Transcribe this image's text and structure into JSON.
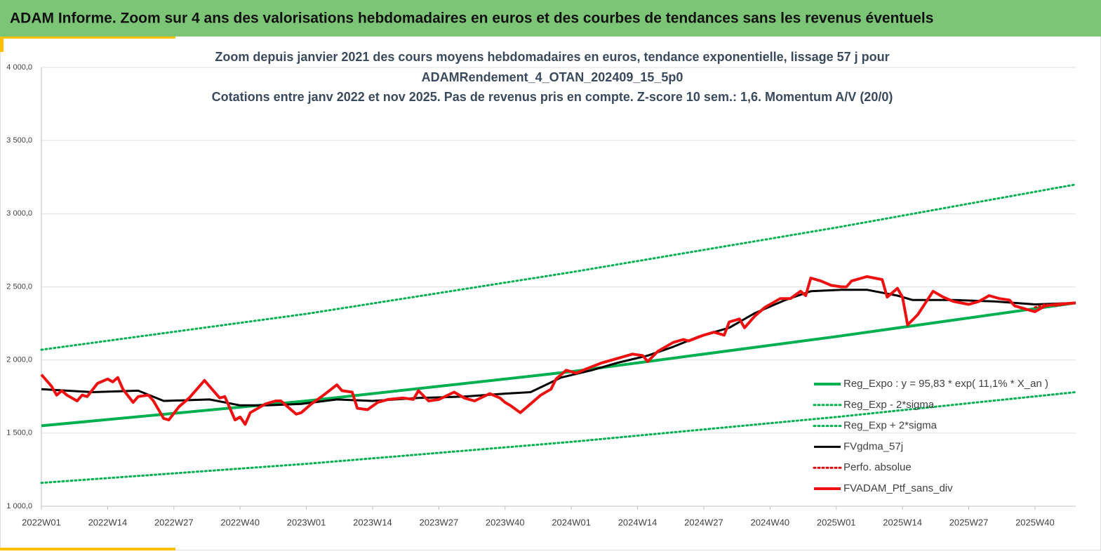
{
  "header": {
    "title": "ADAM Informe. Zoom sur 4 ans des valorisations hebdomadaires en euros et des courbes de tendances sans les revenus éventuels"
  },
  "chart_data": {
    "type": "line",
    "title": [
      "Zoom depuis janvier 2021 des cours moyens hebdomadaires  en euros, tendance exponentielle, lissage 57 j pour",
      "ADAMRendement_4_OTAN_202409_15_5p0",
      "Cotations  entre janv 2022 et nov 2025. Pas de revenus pris en compte. Z-score 10 sem.: 1,6. Momentum  A/V (20/0)"
    ],
    "xlim": [
      0,
      203
    ],
    "xticks": [
      {
        "value": 0,
        "label": "2022W01"
      },
      {
        "value": 13,
        "label": "2022W14"
      },
      {
        "value": 26,
        "label": "2022W27"
      },
      {
        "value": 39,
        "label": "2022W40"
      },
      {
        "value": 52,
        "label": "2023W01"
      },
      {
        "value": 65,
        "label": "2023W14"
      },
      {
        "value": 78,
        "label": "2023W27"
      },
      {
        "value": 91,
        "label": "2023W40"
      },
      {
        "value": 104,
        "label": "2024W01"
      },
      {
        "value": 117,
        "label": "2024W14"
      },
      {
        "value": 130,
        "label": "2024W27"
      },
      {
        "value": 143,
        "label": "2024W40"
      },
      {
        "value": 156,
        "label": "2025W01"
      },
      {
        "value": 169,
        "label": "2025W14"
      },
      {
        "value": 182,
        "label": "2025W27"
      },
      {
        "value": 195,
        "label": "2025W40"
      }
    ],
    "ylim": [
      1000,
      4000
    ],
    "yticks": [
      {
        "value": 1000,
        "label": "1 000,0"
      },
      {
        "value": 1500,
        "label": "1 500,0"
      },
      {
        "value": 2000,
        "label": "2 000,0"
      },
      {
        "value": 2500,
        "label": "2 500,0"
      },
      {
        "value": 3000,
        "label": "3 000,0"
      },
      {
        "value": 3500,
        "label": "3 500,0"
      },
      {
        "value": 4000,
        "label": "4 000,0"
      }
    ],
    "grid": true,
    "legend": "lower right",
    "series": [
      {
        "name": "Reg_Expo : y = 95,83 * exp( 11,1% *  X_an )",
        "color": "#00b050",
        "style": "solid",
        "width": 4,
        "x": [
          0,
          52,
          104,
          156,
          203
        ],
        "values": [
          1550,
          1720,
          1920,
          2160,
          2390
        ]
      },
      {
        "name": "Reg_Exp - 2*sigma",
        "color": "#00b050",
        "style": "dotted",
        "width": 3,
        "x": [
          0,
          52,
          104,
          156,
          203
        ],
        "values": [
          1160,
          1290,
          1440,
          1610,
          1780
        ]
      },
      {
        "name": "Reg_Exp + 2*sigma",
        "color": "#00b050",
        "style": "dotted",
        "width": 3,
        "x": [
          0,
          52,
          104,
          156,
          203
        ],
        "values": [
          2070,
          2315,
          2600,
          2905,
          3200
        ]
      },
      {
        "name": "FVgdma_57j",
        "color": "#000000",
        "style": "solid",
        "width": 3,
        "x": [
          0,
          10,
          19,
          24,
          33,
          39,
          44,
          51,
          58,
          65,
          74,
          83,
          91,
          96,
          102,
          108,
          113,
          119,
          124,
          129,
          135,
          140,
          146,
          151,
          157,
          162,
          168,
          171,
          179,
          187,
          195,
          203
        ],
        "values": [
          1800,
          1780,
          1790,
          1720,
          1730,
          1690,
          1690,
          1700,
          1730,
          1720,
          1740,
          1750,
          1770,
          1780,
          1880,
          1930,
          1980,
          2030,
          2090,
          2160,
          2220,
          2320,
          2410,
          2470,
          2480,
          2480,
          2440,
          2410,
          2410,
          2400,
          2380,
          2390
        ]
      },
      {
        "name": "Perfo. absolue",
        "color": "#e00000",
        "style": "dotted",
        "width": 3,
        "x": [
          195,
          197,
          199,
          201,
          203
        ],
        "values": [
          2360,
          2380,
          2370,
          2380,
          2390
        ]
      },
      {
        "name": "FVADAM_Ptf_sans_div",
        "color": "#ee1111",
        "style": "solid",
        "width": 4,
        "x": [
          0,
          2,
          3,
          4,
          5,
          7,
          8,
          9,
          11,
          13,
          14,
          15,
          16,
          18,
          19,
          21,
          22,
          24,
          25,
          27,
          29,
          32,
          33,
          35,
          36,
          38,
          39,
          40,
          41,
          44,
          46,
          47,
          48,
          50,
          51,
          53,
          55,
          58,
          59,
          61,
          62,
          64,
          66,
          68,
          71,
          73,
          74,
          76,
          78,
          81,
          83,
          85,
          88,
          90,
          91,
          92,
          94,
          96,
          98,
          100,
          101,
          103,
          105,
          107,
          110,
          113,
          116,
          118,
          119,
          121,
          124,
          126,
          127,
          130,
          132,
          134,
          135,
          137,
          138,
          140,
          142,
          145,
          147,
          149,
          150,
          151,
          153,
          155,
          157,
          158,
          159,
          162,
          165,
          166,
          168,
          169,
          170,
          172,
          175,
          177,
          179,
          182,
          184,
          186,
          188,
          190,
          191,
          193,
          195,
          197,
          199,
          203
        ],
        "values": [
          1900,
          1820,
          1760,
          1790,
          1760,
          1720,
          1760,
          1750,
          1840,
          1870,
          1850,
          1880,
          1800,
          1710,
          1750,
          1760,
          1720,
          1600,
          1590,
          1680,
          1740,
          1860,
          1820,
          1740,
          1750,
          1590,
          1610,
          1560,
          1640,
          1700,
          1720,
          1720,
          1690,
          1630,
          1640,
          1700,
          1750,
          1830,
          1790,
          1780,
          1670,
          1660,
          1710,
          1730,
          1740,
          1730,
          1790,
          1720,
          1730,
          1780,
          1740,
          1720,
          1770,
          1740,
          1710,
          1690,
          1640,
          1700,
          1760,
          1800,
          1870,
          1930,
          1910,
          1940,
          1980,
          2010,
          2040,
          2030,
          1990,
          2060,
          2120,
          2140,
          2130,
          2170,
          2190,
          2170,
          2260,
          2280,
          2220,
          2300,
          2360,
          2420,
          2420,
          2470,
          2440,
          2560,
          2540,
          2510,
          2500,
          2500,
          2540,
          2570,
          2550,
          2430,
          2490,
          2430,
          2240,
          2310,
          2470,
          2430,
          2400,
          2380,
          2400,
          2440,
          2420,
          2410,
          2370,
          2350,
          2330,
          2370,
          2380,
          2390
        ]
      }
    ]
  }
}
